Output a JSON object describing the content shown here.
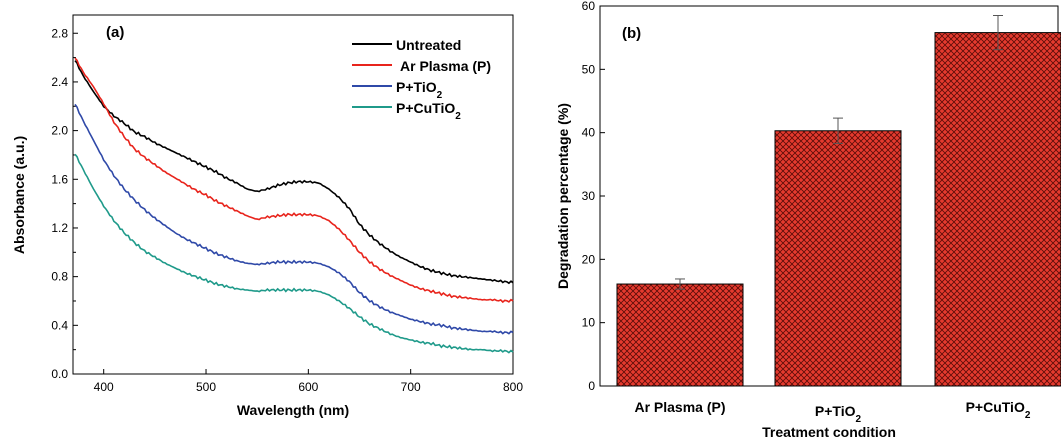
{
  "chart_data": [
    {
      "type": "line",
      "panel_label": "(a)",
      "xlabel": "Wavelength (nm)",
      "ylabel": "Absorbance (a.u.)",
      "xlim": [
        370,
        800
      ],
      "ylim": [
        0.0,
        2.95
      ],
      "x_ticks": [
        "400",
        "500",
        "600",
        "700",
        "800"
      ],
      "y_ticks": [
        "0.0",
        "0.4",
        "0.8",
        "1.2",
        "1.6",
        "2.0",
        "2.4",
        "2.8"
      ],
      "legend_position": "top-right",
      "grid": false,
      "x": [
        372,
        380,
        390,
        400,
        410,
        420,
        430,
        440,
        450,
        460,
        470,
        480,
        490,
        500,
        510,
        520,
        530,
        540,
        550,
        560,
        570,
        580,
        590,
        600,
        610,
        620,
        630,
        640,
        650,
        660,
        670,
        680,
        690,
        700,
        710,
        720,
        730,
        740,
        750,
        760,
        770,
        780,
        790,
        800
      ],
      "series": [
        {
          "name": "Untreated",
          "color": "#000000",
          "values": [
            2.58,
            2.45,
            2.32,
            2.2,
            2.12,
            2.06,
            1.99,
            1.95,
            1.9,
            1.86,
            1.82,
            1.78,
            1.74,
            1.7,
            1.66,
            1.61,
            1.57,
            1.52,
            1.5,
            1.52,
            1.55,
            1.57,
            1.58,
            1.58,
            1.57,
            1.52,
            1.45,
            1.36,
            1.23,
            1.14,
            1.07,
            1.01,
            0.96,
            0.92,
            0.88,
            0.85,
            0.83,
            0.81,
            0.8,
            0.79,
            0.78,
            0.77,
            0.76,
            0.75
          ]
        },
        {
          "name": "Ar Plasma (P)",
          "color": "#e8241c",
          "values": [
            2.6,
            2.48,
            2.36,
            2.22,
            2.07,
            1.95,
            1.85,
            1.78,
            1.72,
            1.66,
            1.61,
            1.56,
            1.51,
            1.47,
            1.42,
            1.38,
            1.34,
            1.3,
            1.27,
            1.29,
            1.3,
            1.31,
            1.31,
            1.31,
            1.3,
            1.26,
            1.19,
            1.1,
            1.0,
            0.92,
            0.86,
            0.81,
            0.77,
            0.73,
            0.7,
            0.68,
            0.66,
            0.64,
            0.63,
            0.62,
            0.61,
            0.61,
            0.6,
            0.6
          ]
        },
        {
          "name": "P+TiO2",
          "color": "#2f49a8",
          "values": [
            2.22,
            2.08,
            1.92,
            1.76,
            1.63,
            1.52,
            1.43,
            1.35,
            1.28,
            1.22,
            1.16,
            1.11,
            1.07,
            1.03,
            0.99,
            0.96,
            0.93,
            0.91,
            0.9,
            0.91,
            0.92,
            0.92,
            0.92,
            0.92,
            0.91,
            0.88,
            0.83,
            0.76,
            0.67,
            0.6,
            0.55,
            0.51,
            0.48,
            0.45,
            0.43,
            0.41,
            0.4,
            0.38,
            0.37,
            0.36,
            0.35,
            0.35,
            0.34,
            0.34
          ]
        },
        {
          "name": "P+CuTiO2",
          "color": "#1f9a8a",
          "values": [
            1.81,
            1.68,
            1.52,
            1.38,
            1.26,
            1.16,
            1.08,
            1.01,
            0.96,
            0.91,
            0.87,
            0.83,
            0.8,
            0.77,
            0.74,
            0.72,
            0.7,
            0.69,
            0.68,
            0.69,
            0.69,
            0.69,
            0.69,
            0.69,
            0.68,
            0.65,
            0.6,
            0.54,
            0.47,
            0.41,
            0.37,
            0.33,
            0.3,
            0.28,
            0.26,
            0.25,
            0.23,
            0.22,
            0.21,
            0.2,
            0.2,
            0.19,
            0.19,
            0.18
          ]
        }
      ]
    },
    {
      "type": "bar",
      "panel_label": "(b)",
      "xlabel": "Treatment condition",
      "ylabel": "Degradation percentage (%)",
      "ylim": [
        0,
        60
      ],
      "y_ticks": [
        "0",
        "10",
        "20",
        "30",
        "40",
        "50",
        "60"
      ],
      "grid": false,
      "bar_color": "#e53a2e",
      "categories": [
        "Ar Plasma (P)",
        "P+TiO2",
        "P+CuTiO2"
      ],
      "values": [
        16.1,
        40.3,
        55.8
      ],
      "errors": [
        0.8,
        2.0,
        2.7
      ]
    }
  ]
}
